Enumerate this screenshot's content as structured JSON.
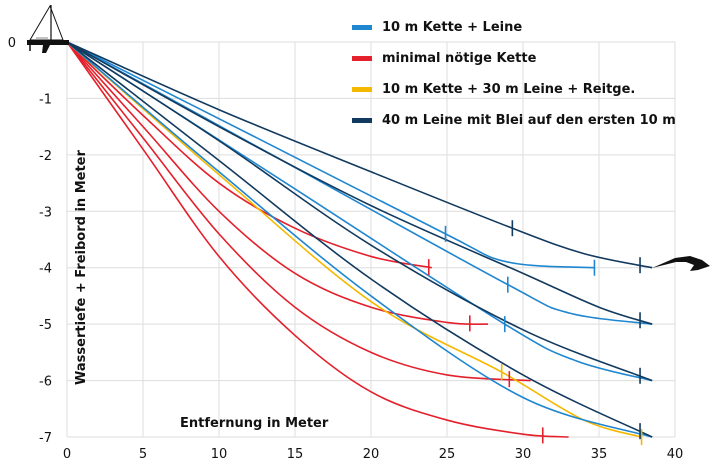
{
  "chart_data": {
    "type": "line",
    "xlabel": "Entfernung in Meter",
    "ylabel": "Wassertiefe + Freibord in Meter",
    "xlim": [
      0,
      40
    ],
    "ylim": [
      -7,
      0
    ],
    "xticks": [
      0,
      5,
      10,
      15,
      20,
      25,
      30,
      35,
      40
    ],
    "yticks": [
      0,
      -1,
      -2,
      -3,
      -4,
      -5,
      -6,
      -7
    ],
    "grid": true,
    "legend_placement": "top-right",
    "legend": [
      {
        "label": "10 m Kette + Leine",
        "color": "#1f86d0"
      },
      {
        "label": "minimal nötige Kette",
        "color": "#e3202b"
      },
      {
        "label": "10 m Kette + 30 m Leine + Reitge.",
        "color": "#f5b800"
      },
      {
        "label": "40 m Leine mit Blei auf den ersten 10 m",
        "color": "#123a5e"
      }
    ],
    "icons": [
      "sailboat-icon",
      "anchor-icon"
    ],
    "series": [
      {
        "group": 1,
        "color": "#e3202b",
        "points": [
          [
            0,
            0
          ],
          [
            5,
            -1.3
          ],
          [
            10,
            -2.5
          ],
          [
            15,
            -3.3
          ],
          [
            20,
            -3.8
          ],
          [
            24,
            -4
          ]
        ],
        "markers": [
          23.8
        ]
      },
      {
        "group": 1,
        "color": "#e3202b",
        "points": [
          [
            0,
            0
          ],
          [
            5,
            -1.5
          ],
          [
            10,
            -3
          ],
          [
            15,
            -4.1
          ],
          [
            20,
            -4.7
          ],
          [
            25,
            -4.97
          ],
          [
            27.7,
            -5
          ]
        ],
        "markers": [
          26.5
        ]
      },
      {
        "group": 1,
        "color": "#e3202b",
        "points": [
          [
            0,
            0
          ],
          [
            5,
            -1.7
          ],
          [
            10,
            -3.4
          ],
          [
            15,
            -4.7
          ],
          [
            20,
            -5.5
          ],
          [
            25,
            -5.9
          ],
          [
            30.5,
            -6
          ]
        ],
        "markers": [
          29.1
        ]
      },
      {
        "group": 1,
        "color": "#e3202b",
        "points": [
          [
            0,
            0
          ],
          [
            5,
            -1.9
          ],
          [
            10,
            -3.8
          ],
          [
            15,
            -5.2
          ],
          [
            20,
            -6.2
          ],
          [
            25,
            -6.7
          ],
          [
            30,
            -6.95
          ],
          [
            33,
            -7
          ]
        ],
        "markers": [
          31.3
        ]
      },
      {
        "group": 2,
        "color": "#f5b800",
        "points": [
          [
            0,
            0
          ],
          [
            10,
            -2.35
          ],
          [
            20,
            -4.6
          ],
          [
            28.6,
            -5.85
          ],
          [
            34,
            -6.7
          ],
          [
            37.8,
            -7
          ]
        ],
        "markers": [
          28.6,
          37.8
        ]
      },
      {
        "group": 0,
        "color": "#1f86d0",
        "points": [
          [
            0,
            0
          ],
          [
            12.5,
            -1.7
          ],
          [
            24.9,
            -3.4
          ],
          [
            29,
            -3.9
          ],
          [
            34.7,
            -4
          ]
        ],
        "markers": [
          24.9,
          34.7
        ]
      },
      {
        "group": 0,
        "color": "#1f86d0",
        "points": [
          [
            0,
            0
          ],
          [
            14.5,
            -2.15
          ],
          [
            29,
            -4.3
          ],
          [
            33,
            -4.8
          ],
          [
            38.5,
            -5
          ]
        ],
        "markers": [
          29
        ]
      },
      {
        "group": 0,
        "color": "#1f86d0",
        "points": [
          [
            0,
            0
          ],
          [
            14.4,
            -2.5
          ],
          [
            28.8,
            -5
          ],
          [
            33.5,
            -5.65
          ],
          [
            38.5,
            -6
          ]
        ],
        "markers": [
          28.8
        ]
      },
      {
        "group": 0,
        "color": "#1f86d0",
        "points": [
          [
            0,
            0
          ],
          [
            10,
            -2.3
          ],
          [
            20,
            -4.5
          ],
          [
            30,
            -6.3
          ],
          [
            38.5,
            -7
          ]
        ],
        "markers": []
      },
      {
        "group": 3,
        "color": "#123a5e",
        "points": [
          [
            0,
            0
          ],
          [
            10,
            -1.2
          ],
          [
            20,
            -2.3
          ],
          [
            29.3,
            -3.3
          ],
          [
            34,
            -3.75
          ],
          [
            38.5,
            -4
          ]
        ],
        "markers": [
          29.3,
          37.7
        ]
      },
      {
        "group": 3,
        "color": "#123a5e",
        "points": [
          [
            0,
            0
          ],
          [
            10,
            -1.5
          ],
          [
            20,
            -2.9
          ],
          [
            30,
            -4.1
          ],
          [
            35,
            -4.7
          ],
          [
            38.5,
            -5
          ]
        ],
        "markers": [
          37.7
        ]
      },
      {
        "group": 3,
        "color": "#123a5e",
        "points": [
          [
            0,
            0
          ],
          [
            10,
            -1.75
          ],
          [
            20,
            -3.6
          ],
          [
            30,
            -5.1
          ],
          [
            38.5,
            -6
          ]
        ],
        "markers": [
          37.7
        ]
      },
      {
        "group": 3,
        "color": "#123a5e",
        "points": [
          [
            0,
            0
          ],
          [
            10,
            -2.1
          ],
          [
            20,
            -4.2
          ],
          [
            30,
            -5.9
          ],
          [
            38.5,
            -7
          ]
        ],
        "markers": [
          37.7
        ]
      }
    ]
  }
}
